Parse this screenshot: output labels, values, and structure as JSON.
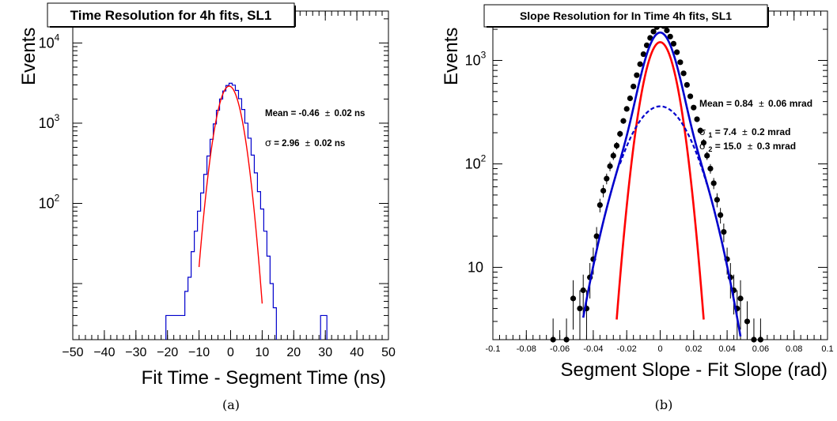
{
  "chart_data": [
    {
      "type": "histogram",
      "title": "Time Resolution for 4h fits, SL1",
      "xlabel": "Fit Time - Segment Time (ns)",
      "ylabel": "Events",
      "xlim": [
        -50,
        50
      ],
      "ylim": [
        2,
        25000
      ],
      "yscale": "log",
      "x_ticks": [
        -50,
        -40,
        -30,
        -20,
        -10,
        0,
        10,
        20,
        30,
        40,
        50
      ],
      "y_tick_labels": [
        {
          "value": 100,
          "base": "10",
          "exp": "2"
        },
        {
          "value": 1000,
          "base": "10",
          "exp": "3"
        },
        {
          "value": 10000,
          "base": "10",
          "exp": "4"
        }
      ],
      "histogram": {
        "bin_width": 1,
        "bins": [
          [
            -20,
            4
          ],
          [
            -19,
            4
          ],
          [
            -18,
            4
          ],
          [
            -17,
            4
          ],
          [
            -16,
            4
          ],
          [
            -15,
            4
          ],
          [
            -14,
            8
          ],
          [
            -13,
            12
          ],
          [
            -12,
            25
          ],
          [
            -11,
            45
          ],
          [
            -10,
            80
          ],
          [
            -9,
            135
          ],
          [
            -8,
            230
          ],
          [
            -7,
            390
          ],
          [
            -6,
            630
          ],
          [
            -5,
            980
          ],
          [
            -4,
            1450
          ],
          [
            -3,
            2000
          ],
          [
            -2,
            2520
          ],
          [
            -1,
            2950
          ],
          [
            0,
            3150
          ],
          [
            1,
            2980
          ],
          [
            2,
            2560
          ],
          [
            3,
            2020
          ],
          [
            4,
            1480
          ],
          [
            5,
            1000
          ],
          [
            6,
            650
          ],
          [
            7,
            400
          ],
          [
            8,
            240
          ],
          [
            9,
            140
          ],
          [
            10,
            85
          ],
          [
            11,
            45
          ],
          [
            12,
            22
          ],
          [
            13,
            10
          ],
          [
            14,
            5
          ],
          [
            29,
            4
          ],
          [
            30,
            4
          ]
        ]
      },
      "fit": {
        "mean": -0.46,
        "sigma": 2.96,
        "amplitude": 2900,
        "x_range": [
          -10,
          10
        ]
      },
      "annotations": [
        {
          "id": "mean",
          "label": "Mean = -0.46",
          "pm": "±",
          "value": "0.02 ns"
        },
        {
          "id": "sigma",
          "symbol": "σ",
          "label": " = 2.96",
          "pm": "±",
          "value": "0.02 ns"
        }
      ],
      "caption": "(a)",
      "colors": {
        "histogram": "#0000cc",
        "fit": "#ff0000"
      }
    },
    {
      "type": "scatter",
      "title": "Slope Resolution for In Time 4h fits, SL1",
      "xlabel": "Segment Slope - Fit Slope (rad)",
      "ylabel": "Events",
      "xlim": [
        -0.1,
        0.1
      ],
      "ylim": [
        2,
        3000
      ],
      "yscale": "log",
      "x_ticks": [
        -0.1,
        -0.08,
        -0.06,
        -0.04,
        -0.02,
        0,
        0.02,
        0.04,
        0.06,
        0.08,
        0.1
      ],
      "x_tick_labels": [
        "-0.1",
        "-0.08",
        "-0.06",
        "-0.04",
        "-0.02",
        "0",
        "0.02",
        "0.04",
        "0.06",
        "0.08",
        "0.1"
      ],
      "y_tick_labels": [
        {
          "value": 10,
          "base": "10",
          "exp": ""
        },
        {
          "value": 100,
          "base": "10",
          "exp": "2"
        },
        {
          "value": 1000,
          "base": "10",
          "exp": "3"
        }
      ],
      "points": [
        [
          -0.064,
          2,
          1.2
        ],
        [
          -0.056,
          2,
          1.2
        ],
        [
          -0.052,
          5,
          2.5
        ],
        [
          -0.048,
          4,
          2
        ],
        [
          -0.046,
          6,
          2.5
        ],
        [
          -0.044,
          4,
          2
        ],
        [
          -0.042,
          8,
          3
        ],
        [
          -0.04,
          12,
          3.5
        ],
        [
          -0.038,
          20,
          4.5
        ],
        [
          -0.036,
          40,
          6
        ],
        [
          -0.034,
          55,
          7.5
        ],
        [
          -0.032,
          72,
          8.5
        ],
        [
          -0.03,
          95,
          10
        ],
        [
          -0.028,
          120,
          11
        ],
        [
          -0.026,
          150,
          12
        ],
        [
          -0.024,
          195,
          14
        ],
        [
          -0.022,
          260,
          16
        ],
        [
          -0.02,
          340,
          18
        ],
        [
          -0.018,
          430,
          21
        ],
        [
          -0.016,
          560,
          24
        ],
        [
          -0.014,
          720,
          27
        ],
        [
          -0.012,
          920,
          30
        ],
        [
          -0.01,
          1150,
          34
        ],
        [
          -0.008,
          1400,
          37
        ],
        [
          -0.006,
          1650,
          40
        ],
        [
          -0.004,
          1900,
          43
        ],
        [
          -0.002,
          2100,
          46
        ],
        [
          0,
          2200,
          47
        ],
        [
          0.002,
          2150,
          46
        ],
        [
          0.004,
          1950,
          44
        ],
        [
          0.006,
          1700,
          41
        ],
        [
          0.008,
          1450,
          38
        ],
        [
          0.01,
          1200,
          35
        ],
        [
          0.012,
          960,
          31
        ],
        [
          0.014,
          750,
          27
        ],
        [
          0.016,
          580,
          24
        ],
        [
          0.018,
          450,
          21
        ],
        [
          0.02,
          350,
          19
        ],
        [
          0.022,
          270,
          16
        ],
        [
          0.024,
          210,
          14
        ],
        [
          0.026,
          160,
          13
        ],
        [
          0.028,
          120,
          11
        ],
        [
          0.03,
          90,
          9.5
        ],
        [
          0.032,
          65,
          8
        ],
        [
          0.034,
          45,
          7
        ],
        [
          0.036,
          32,
          5.5
        ],
        [
          0.038,
          22,
          4.5
        ],
        [
          0.04,
          12,
          3.5
        ],
        [
          0.042,
          8,
          3
        ],
        [
          0.044,
          6,
          2.5
        ],
        [
          0.046,
          4,
          2
        ],
        [
          0.048,
          5,
          2.5
        ],
        [
          0.052,
          3,
          1.7
        ],
        [
          0.056,
          2,
          1.2
        ],
        [
          0.06,
          2,
          1.2
        ]
      ],
      "fits": [
        {
          "name": "core",
          "color": "#ff0000",
          "style": "solid",
          "mean": 0.0,
          "sigma": 0.0074,
          "amplitude": 1500,
          "x_range": [
            -0.026,
            0.026
          ]
        },
        {
          "name": "wide",
          "color": "#0000cc",
          "style": "dashed",
          "mean": 0.0,
          "sigma": 0.015,
          "amplitude": 360,
          "x_range": [
            -0.024,
            0.028
          ]
        },
        {
          "name": "total",
          "color": "#0000cc",
          "style": "solid",
          "x_range": [
            -0.046,
            0.05
          ]
        }
      ],
      "annotations": [
        {
          "id": "mean",
          "label": "Mean = 0.84",
          "pm": "±",
          "value": "0.06 mrad"
        },
        {
          "id": "sigma1",
          "symbol": "σ",
          "sub": "1",
          "label": " =  7.4",
          "pm": "±",
          "value": "0.2 mrad"
        },
        {
          "id": "sigma2",
          "symbol": "σ",
          "sub": "2",
          "label": " = 15.0",
          "pm": "±",
          "value": "0.3 mrad"
        }
      ],
      "caption": "(b)",
      "colors": {
        "points": "#000000"
      }
    }
  ]
}
